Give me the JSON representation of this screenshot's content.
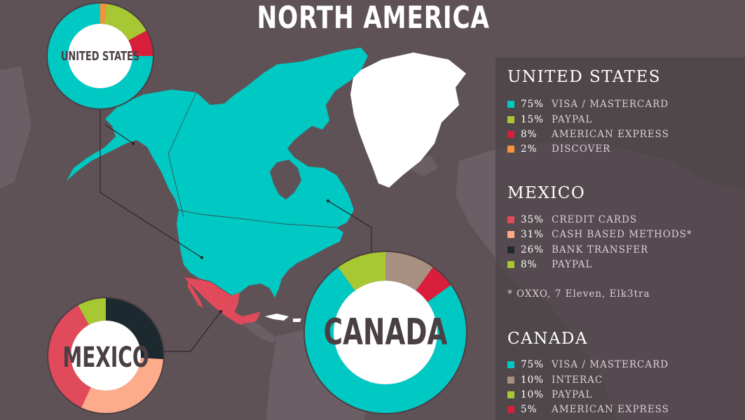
{
  "title": "NORTH AMERICA",
  "colors": {
    "background": "#5e5257",
    "land_main": "#00c9c3",
    "mexico": "#e04a5a",
    "greenland": "#ffffff",
    "visa_mastercard": "#00c9c3",
    "paypal": "#a7c833",
    "american_express": "#d91e3c",
    "discover": "#f7923a",
    "credit_cards": "#e04a5a",
    "cash_based": "#fdab8a",
    "bank_transfer": "#1c2a30",
    "interac": "#a89080"
  },
  "legend": {
    "united_states": {
      "title": "UNITED STATES",
      "items": [
        {
          "pct": "75%",
          "label": "VISA / MASTERCARD",
          "color": "#00c9c3"
        },
        {
          "pct": "15%",
          "label": "PAYPAL",
          "color": "#a7c833"
        },
        {
          "pct": "8%",
          "label": "AMERICAN EXPRESS",
          "color": "#d91e3c"
        },
        {
          "pct": "2%",
          "label": "DISCOVER",
          "color": "#f7923a"
        }
      ]
    },
    "mexico": {
      "title": "MEXICO",
      "items": [
        {
          "pct": "35%",
          "label": "CREDIT CARDS",
          "color": "#e04a5a"
        },
        {
          "pct": "31%",
          "label": "CASH BASED METHODS*",
          "color": "#fdab8a"
        },
        {
          "pct": "26%",
          "label": "BANK TRANSFER",
          "color": "#1c2a30"
        },
        {
          "pct": "8%",
          "label": "PAYPAL",
          "color": "#a7c833"
        }
      ],
      "note": "* OXXO, 7 Eleven, Elk3tra"
    },
    "canada": {
      "title": "CANADA",
      "items": [
        {
          "pct": "75%",
          "label": "VISA / MASTERCARD",
          "color": "#00c9c3"
        },
        {
          "pct": "10%",
          "label": "INTERAC",
          "color": "#a89080"
        },
        {
          "pct": "10%",
          "label": "PAYPAL",
          "color": "#a7c833"
        },
        {
          "pct": "5%",
          "label": "AMERICAN EXPRESS",
          "color": "#d91e3c"
        }
      ]
    }
  },
  "donuts": {
    "united_states": {
      "label": "UNITED STATES",
      "slices": [
        {
          "value": 2,
          "color": "#f7923a"
        },
        {
          "value": 15,
          "color": "#a7c833"
        },
        {
          "value": 8,
          "color": "#d91e3c"
        },
        {
          "value": 75,
          "color": "#00c9c3"
        }
      ]
    },
    "canada": {
      "label": "CANADA",
      "slices": [
        {
          "value": 10,
          "color": "#a89080"
        },
        {
          "value": 5,
          "color": "#d91e3c"
        },
        {
          "value": 75,
          "color": "#00c9c3"
        },
        {
          "value": 10,
          "color": "#a7c833"
        }
      ]
    },
    "mexico": {
      "label": "MEXICO",
      "slices": [
        {
          "value": 26,
          "color": "#1c2a30"
        },
        {
          "value": 31,
          "color": "#fdab8a"
        },
        {
          "value": 35,
          "color": "#e04a5a"
        },
        {
          "value": 8,
          "color": "#a7c833"
        }
      ]
    }
  }
}
